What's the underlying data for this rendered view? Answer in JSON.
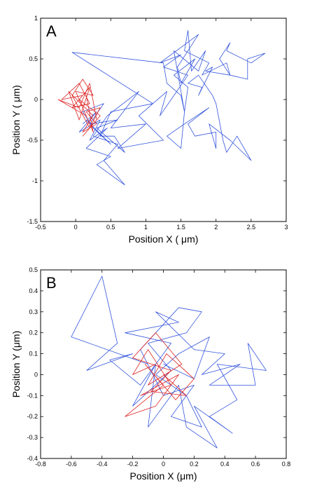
{
  "chart_data": [
    {
      "type": "line",
      "panel_label": "A",
      "xlabel": "Position X ( μm)",
      "ylabel": "Position Y ( μm)",
      "xlim": [
        -0.5,
        3
      ],
      "ylim": [
        -1.5,
        1
      ],
      "xticks": [
        -0.5,
        0,
        0.5,
        1,
        1.5,
        2,
        2.5,
        3
      ],
      "yticks": [
        -1.5,
        -1,
        -0.5,
        0,
        0.5,
        1
      ],
      "grid": false,
      "series": [
        {
          "color": "#3355dd",
          "points": [
            [
              0.1,
              -0.3
            ],
            [
              0.3,
              -0.15
            ],
            [
              0.05,
              -0.4
            ],
            [
              0.35,
              -0.25
            ],
            [
              0.2,
              -0.5
            ],
            [
              0.45,
              -0.35
            ],
            [
              0.15,
              -0.6
            ],
            [
              0.5,
              -0.7
            ],
            [
              0.3,
              -0.8
            ],
            [
              0.7,
              -1.05
            ],
            [
              0.4,
              -0.75
            ],
            [
              0.6,
              -0.55
            ],
            [
              0.25,
              -0.45
            ],
            [
              0.45,
              -0.2
            ],
            [
              0.9,
              0.1
            ],
            [
              0.5,
              -0.35
            ],
            [
              1.0,
              -0.3
            ],
            [
              0.6,
              -0.6
            ],
            [
              1.25,
              -0.5
            ],
            [
              0.9,
              -0.2
            ],
            [
              1.3,
              0.1
            ],
            [
              1.2,
              -0.2
            ],
            [
              1.6,
              0.3
            ],
            [
              1.25,
              0.4
            ],
            [
              1.5,
              0.55
            ],
            [
              1.2,
              0.45
            ],
            [
              1.75,
              0.8
            ],
            [
              1.45,
              0.4
            ],
            [
              1.5,
              0.2
            ],
            [
              1.7,
              0.5
            ],
            [
              1.4,
              0.3
            ],
            [
              1.6,
              0.15
            ],
            [
              1.55,
              -0.15
            ],
            [
              1.4,
              0.6
            ],
            [
              1.75,
              0.35
            ],
            [
              1.85,
              0.6
            ],
            [
              1.65,
              0.35
            ],
            [
              1.6,
              0.85
            ],
            [
              1.55,
              0.6
            ],
            [
              1.9,
              0.45
            ],
            [
              1.8,
              0.3
            ],
            [
              2.15,
              0.45
            ],
            [
              2.2,
              0.3
            ],
            [
              2.45,
              0.25
            ],
            [
              2.45,
              0.5
            ],
            [
              2.7,
              0.57
            ],
            [
              2.5,
              0.45
            ],
            [
              2.15,
              0.6
            ],
            [
              2.2,
              0.7
            ],
            [
              2.05,
              0.5
            ],
            [
              2.2,
              0.3
            ],
            [
              1.85,
              0.35
            ],
            [
              1.95,
              0.4
            ],
            [
              1.75,
              0.05
            ],
            [
              1.8,
              0.15
            ],
            [
              1.6,
              0.2
            ],
            [
              1.75,
              0.3
            ],
            [
              1.95,
              0.05
            ],
            [
              2.0,
              -0.05
            ],
            [
              2.1,
              -0.5
            ],
            [
              2.15,
              -0.65
            ],
            [
              2.3,
              -0.45
            ],
            [
              2.5,
              -0.75
            ],
            [
              2.2,
              -0.5
            ],
            [
              1.9,
              -0.3
            ],
            [
              2.0,
              -0.6
            ],
            [
              2.0,
              -0.4
            ],
            [
              1.7,
              -0.45
            ],
            [
              1.6,
              -0.3
            ],
            [
              1.9,
              -0.1
            ],
            [
              1.55,
              -0.3
            ],
            [
              1.3,
              -0.45
            ],
            [
              1.5,
              -0.6
            ],
            [
              1.55,
              -0.15
            ],
            [
              1.5,
              0.05
            ],
            [
              1.3,
              0.2
            ],
            [
              1.25,
              0.45
            ],
            [
              -0.05,
              0.58
            ],
            [
              1.1,
              -0.05
            ],
            [
              0.5,
              -0.15
            ],
            [
              0.35,
              -0.45
            ],
            [
              0.55,
              -0.45
            ],
            [
              0.7,
              -0.65
            ],
            [
              0.3,
              -0.35
            ],
            [
              0.6,
              -0.25
            ],
            [
              0.2,
              -0.3
            ],
            [
              0.4,
              -0.05
            ],
            [
              0.1,
              -0.15
            ],
            [
              0.25,
              -0.35
            ],
            [
              0.5,
              -0.55
            ],
            [
              0.15,
              -0.25
            ]
          ]
        },
        {
          "color": "#dd2222",
          "points": [
            [
              0.1,
              0.05
            ],
            [
              -0.2,
              0.0
            ],
            [
              0.05,
              0.2
            ],
            [
              0.2,
              -0.05
            ],
            [
              -0.05,
              -0.1
            ],
            [
              0.15,
              0.1
            ],
            [
              0.0,
              -0.05
            ],
            [
              0.2,
              0.15
            ],
            [
              0.05,
              -0.25
            ],
            [
              -0.1,
              0.1
            ],
            [
              0.25,
              -0.2
            ],
            [
              0.1,
              -0.4
            ],
            [
              0.3,
              -0.3
            ],
            [
              0.15,
              -0.15
            ],
            [
              0.35,
              -0.1
            ],
            [
              0.2,
              -0.35
            ],
            [
              -0.05,
              0.05
            ],
            [
              0.1,
              0.25
            ],
            [
              0.25,
              0.05
            ],
            [
              0.0,
              0.1
            ],
            [
              0.15,
              -0.2
            ],
            [
              -0.25,
              0.0
            ],
            [
              0.05,
              -0.1
            ],
            [
              0.2,
              0.2
            ],
            [
              0.3,
              -0.25
            ],
            [
              0.1,
              -0.45
            ],
            [
              0.35,
              -0.2
            ],
            [
              0.05,
              0.0
            ],
            [
              0.25,
              -0.4
            ],
            [
              0.15,
              0.05
            ]
          ]
        }
      ]
    },
    {
      "type": "line",
      "panel_label": "B",
      "xlabel": "Position X (μm)",
      "ylabel": "Position Y (μm)",
      "xlim": [
        -0.8,
        0.8
      ],
      "ylim": [
        -0.4,
        0.5
      ],
      "xticks": [
        -0.8,
        -0.6,
        -0.4,
        -0.2,
        0,
        0.2,
        0.4,
        0.6,
        0.8
      ],
      "yticks": [
        -0.4,
        -0.3,
        -0.2,
        -0.1,
        0,
        0.1,
        0.2,
        0.3,
        0.4,
        0.5
      ],
      "grid": false,
      "series": [
        {
          "color": "#3355dd",
          "points": [
            [
              -0.1,
              0.05
            ],
            [
              -0.6,
              0.18
            ],
            [
              -0.4,
              0.47
            ],
            [
              -0.3,
              0.15
            ],
            [
              -0.5,
              0.02
            ],
            [
              -0.2,
              0.1
            ],
            [
              -0.35,
              0.07
            ],
            [
              -0.15,
              -0.05
            ],
            [
              0.05,
              0.15
            ],
            [
              -0.25,
              0.2
            ],
            [
              0.1,
              0.25
            ],
            [
              -0.05,
              0.3
            ],
            [
              0.2,
              0.12
            ],
            [
              0.4,
              0.1
            ],
            [
              0.25,
              0.0
            ],
            [
              0.5,
              0.05
            ],
            [
              0.3,
              -0.05
            ],
            [
              0.6,
              -0.05
            ],
            [
              0.55,
              0.15
            ],
            [
              0.67,
              0.02
            ],
            [
              0.35,
              0.05
            ],
            [
              0.48,
              -0.12
            ],
            [
              0.3,
              -0.2
            ],
            [
              0.45,
              -0.28
            ],
            [
              0.2,
              -0.15
            ],
            [
              0.35,
              -0.35
            ],
            [
              0.15,
              -0.25
            ],
            [
              0.1,
              -0.05
            ],
            [
              -0.1,
              -0.25
            ],
            [
              -0.05,
              0.05
            ],
            [
              -0.2,
              -0.15
            ],
            [
              0.05,
              0.02
            ],
            [
              -0.1,
              0.15
            ],
            [
              0.15,
              0.2
            ],
            [
              0.25,
              0.3
            ],
            [
              0.1,
              0.32
            ],
            [
              -0.05,
              0.2
            ],
            [
              -0.15,
              0.12
            ],
            [
              0.0,
              -0.1
            ],
            [
              0.2,
              -0.05
            ],
            [
              0.05,
              -0.2
            ],
            [
              0.25,
              -0.25
            ],
            [
              0.15,
              -0.1
            ],
            [
              -0.05,
              0.0
            ],
            [
              0.1,
              0.1
            ],
            [
              0.3,
              0.18
            ],
            [
              0.2,
              -0.02
            ],
            [
              0.0,
              0.05
            ]
          ]
        },
        {
          "color": "#dd2222",
          "points": [
            [
              -0.05,
              0.05
            ],
            [
              -0.2,
              0.0
            ],
            [
              -0.1,
              0.12
            ],
            [
              0.05,
              -0.05
            ],
            [
              -0.15,
              -0.1
            ],
            [
              0.1,
              0.0
            ],
            [
              -0.05,
              -0.15
            ],
            [
              -0.25,
              -0.2
            ],
            [
              0.0,
              -0.05
            ],
            [
              -0.12,
              0.05
            ],
            [
              0.08,
              -0.12
            ],
            [
              0.2,
              -0.02
            ],
            [
              0.02,
              0.1
            ],
            [
              -0.1,
              -0.05
            ],
            [
              0.12,
              0.05
            ],
            [
              -0.05,
              0.2
            ],
            [
              -0.2,
              0.08
            ],
            [
              0.05,
              0.02
            ],
            [
              -0.08,
              -0.08
            ],
            [
              0.15,
              -0.1
            ],
            [
              0.0,
              0.0
            ]
          ]
        }
      ]
    }
  ]
}
